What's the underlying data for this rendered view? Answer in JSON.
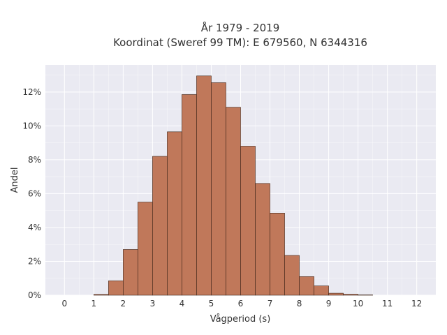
{
  "chart_data": {
    "type": "bar",
    "title": "År 1979 - 2019",
    "subtitle": "Koordinat (Sweref 99 TM): E 679560, N 6344316",
    "xlabel": "Vågperiod (s)",
    "ylabel": "Andel",
    "xlim": [
      -0.65,
      12.65
    ],
    "ylim": [
      0,
      13.6
    ],
    "x_ticks": [
      0,
      1,
      2,
      3,
      4,
      5,
      6,
      7,
      8,
      9,
      10,
      11,
      12
    ],
    "x_tick_labels": [
      "0",
      "1",
      "2",
      "3",
      "4",
      "5",
      "6",
      "7",
      "8",
      "9",
      "10",
      "11",
      "12"
    ],
    "y_ticks": [
      0,
      2,
      4,
      6,
      8,
      10,
      12
    ],
    "y_tick_labels": [
      "0%",
      "2%",
      "4%",
      "6%",
      "8%",
      "10%",
      "12%"
    ],
    "bin_width": 0.5,
    "bin_starts": [
      1,
      1.5,
      2,
      2.5,
      3,
      3.5,
      4,
      4.5,
      5,
      5.5,
      6,
      6.5,
      7,
      7.5,
      8,
      8.5,
      9,
      9.5,
      10
    ],
    "values": [
      0.05,
      0.85,
      2.7,
      5.5,
      8.2,
      9.65,
      11.85,
      12.95,
      12.55,
      11.1,
      8.8,
      6.6,
      4.85,
      2.35,
      1.1,
      0.55,
      0.12,
      0.06,
      0.02
    ],
    "grid": true,
    "colors": {
      "bar_fill": "#c0785a",
      "bar_stroke": "#3d2418",
      "plot_background": "#eaeaf2",
      "grid": "#ffffff",
      "text": "#333333"
    }
  }
}
